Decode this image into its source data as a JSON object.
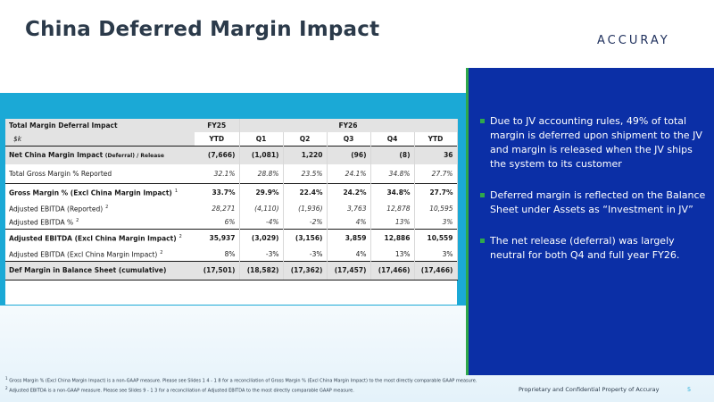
{
  "title": "China Deferred Margin Impact",
  "logo_text": "ACCURAY",
  "table": {
    "header_label": "Total Margin Deferral Impact",
    "units_label": "$k",
    "fy25_label": "FY25",
    "fy26_label": "FY26",
    "subheaders": [
      "YTD",
      "Q1",
      "Q2",
      "Q3",
      "Q4",
      "YTD"
    ],
    "rows": [
      {
        "label": "Net China Margin Impact ",
        "small": "(Deferral) / Release",
        "sup": "",
        "values": [
          "(7,666)",
          "(1,081)",
          "1,220",
          "(96)",
          "(8)",
          "36"
        ]
      },
      {
        "label": "Total Gross Margin % Reported",
        "small": "",
        "sup": "",
        "values": [
          "32.1%",
          "28.8%",
          "23.5%",
          "24.1%",
          "34.8%",
          "27.7%"
        ]
      },
      {
        "label": "Gross Margin % (Excl China Margin Impact)",
        "small": "",
        "sup": "1",
        "values": [
          "33.7%",
          "29.9%",
          "22.4%",
          "24.2%",
          "34.8%",
          "27.7%"
        ]
      },
      {
        "label": "Adjusted EBITDA (Reported)",
        "small": "",
        "sup": "2",
        "values": [
          "28,271",
          "(4,110)",
          "(1,936)",
          "3,763",
          "12,878",
          "10,595"
        ]
      },
      {
        "label": "Adjusted EBITDA %",
        "small": "",
        "sup": "2",
        "values": [
          "6%",
          "-4%",
          "-2%",
          "4%",
          "13%",
          "3%"
        ]
      },
      {
        "label": "Adjusted EBITDA (Excl China Margin Impact)",
        "small": "",
        "sup": "2",
        "values": [
          "35,937",
          "(3,029)",
          "(3,156)",
          "3,859",
          "12,886",
          "10,559"
        ]
      },
      {
        "label": "Adjusted EBITDA (Excl China Margin Impact)",
        "small": "",
        "sup": "2",
        "values": [
          "8%",
          "-3%",
          "-3%",
          "4%",
          "13%",
          "3%"
        ]
      },
      {
        "label": "Def Margin in Balance Sheet (cumulative)",
        "small": "",
        "sup": "",
        "values": [
          "(17,501)",
          "(18,582)",
          "(17,362)",
          "(17,457)",
          "(17,466)",
          "(17,466)"
        ]
      }
    ]
  },
  "bullets": [
    "Due to JV accounting rules, 49% of total margin is deferred upon shipment to the JV and margin is released when the JV ships the system to its customer",
    "Deferred margin is reflected on the Balance Sheet under Assets as “Investment in JV”",
    "The net release (deferral) was largely neutral for both Q4 and full year FY26."
  ],
  "footnotes": {
    "fn1_num": "1",
    "fn1": "Gross Margin % (Excl China Margin Impact) is a non-GAAP measure. Please see Slides 1 4 - 1 8 for a reconciliation of Gross Margin % (Excl China Margin Impact) to the most directly comparable GAAP measure.",
    "fn2_num": "2",
    "fn2": "Adjusted EBITDA is a non-GAAP measure. Please see Slides 9 - 1 3 for a reconciliation of Adjusted EBITDA to the most directly comparable GAAP measure."
  },
  "footer_text": "Proprietary and Confidential Property of Accuray",
  "page_number": "5",
  "colors": {
    "title": "#2b3a4a",
    "band": "#1ba9d6",
    "panel": "#0b2fa6",
    "accent": "#2fa84b"
  }
}
